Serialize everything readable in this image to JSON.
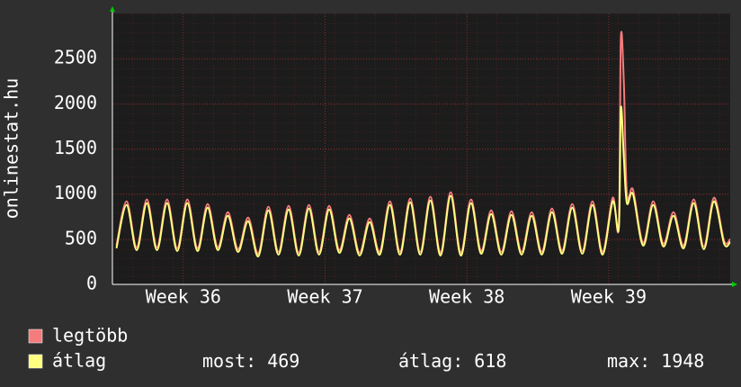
{
  "chart_data": {
    "type": "line",
    "ylabel": "onlinestat.hu",
    "x": [
      0.2,
      0.7,
      1.2,
      1.7,
      2.2,
      2.7,
      3.2,
      3.7,
      4.2,
      4.7,
      5.2,
      5.7,
      6.2,
      6.7,
      7.2,
      7.7,
      8.2,
      8.7,
      9.2,
      9.7,
      10.2,
      10.7,
      11.2,
      11.7,
      12.2,
      12.7,
      13.2,
      13.7,
      14.2,
      14.7,
      15.2,
      15.7,
      16.2,
      16.7,
      17.2,
      17.7,
      18.2,
      18.7,
      19.2,
      19.7,
      20.2,
      20.7,
      21.2,
      21.7,
      22.2,
      22.7,
      23.2,
      23.7,
      24.2,
      24.7,
      25,
      25.1,
      25.25,
      25.4,
      25.7,
      26.2,
      26.7,
      27.2,
      27.7,
      28.2,
      28.7,
      29.2,
      29.7,
      30.2,
      30.5
    ],
    "series": [
      {
        "name": "legtöbb",
        "color": "#f47c7c",
        "values": [
          430,
          920,
          410,
          940,
          410,
          940,
          400,
          940,
          400,
          890,
          410,
          800,
          390,
          740,
          340,
          860,
          360,
          870,
          350,
          880,
          360,
          870,
          380,
          770,
          350,
          730,
          360,
          920,
          360,
          950,
          360,
          970,
          350,
          1020,
          350,
          940,
          370,
          820,
          360,
          810,
          360,
          800,
          360,
          840,
          370,
          890,
          370,
          920,
          360,
          960,
          650,
          2720,
          2230,
          1000,
          1050,
          460,
          920,
          450,
          800,
          430,
          940,
          420,
          960,
          480,
          500
        ]
      },
      {
        "name": "átlag",
        "color": "#ffff80",
        "values": [
          400,
          880,
          380,
          900,
          380,
          900,
          370,
          900,
          370,
          850,
          380,
          760,
          360,
          700,
          310,
          820,
          330,
          830,
          320,
          840,
          330,
          830,
          350,
          730,
          320,
          690,
          330,
          880,
          330,
          910,
          330,
          930,
          320,
          980,
          320,
          900,
          340,
          780,
          330,
          770,
          330,
          760,
          330,
          800,
          340,
          850,
          340,
          880,
          330,
          920,
          620,
          1948,
          1400,
          900,
          1000,
          430,
          880,
          420,
          760,
          400,
          900,
          390,
          920,
          450,
          469
        ]
      }
    ],
    "xlim": [
      0,
      30.5
    ],
    "xticks": [
      {
        "value": 3.5,
        "label": "Week 36"
      },
      {
        "value": 10.5,
        "label": "Week 37"
      },
      {
        "value": 17.5,
        "label": "Week 38"
      },
      {
        "value": 24.5,
        "label": "Week 39"
      }
    ],
    "ylim": [
      0,
      3000
    ],
    "yticks": [
      0,
      500,
      1000,
      1500,
      2000,
      2500
    ],
    "grid": true,
    "stats": [
      {
        "label": "most:",
        "value": 469
      },
      {
        "label": "átlag:",
        "value": 618
      },
      {
        "label": "max:",
        "value": 1948
      }
    ]
  }
}
